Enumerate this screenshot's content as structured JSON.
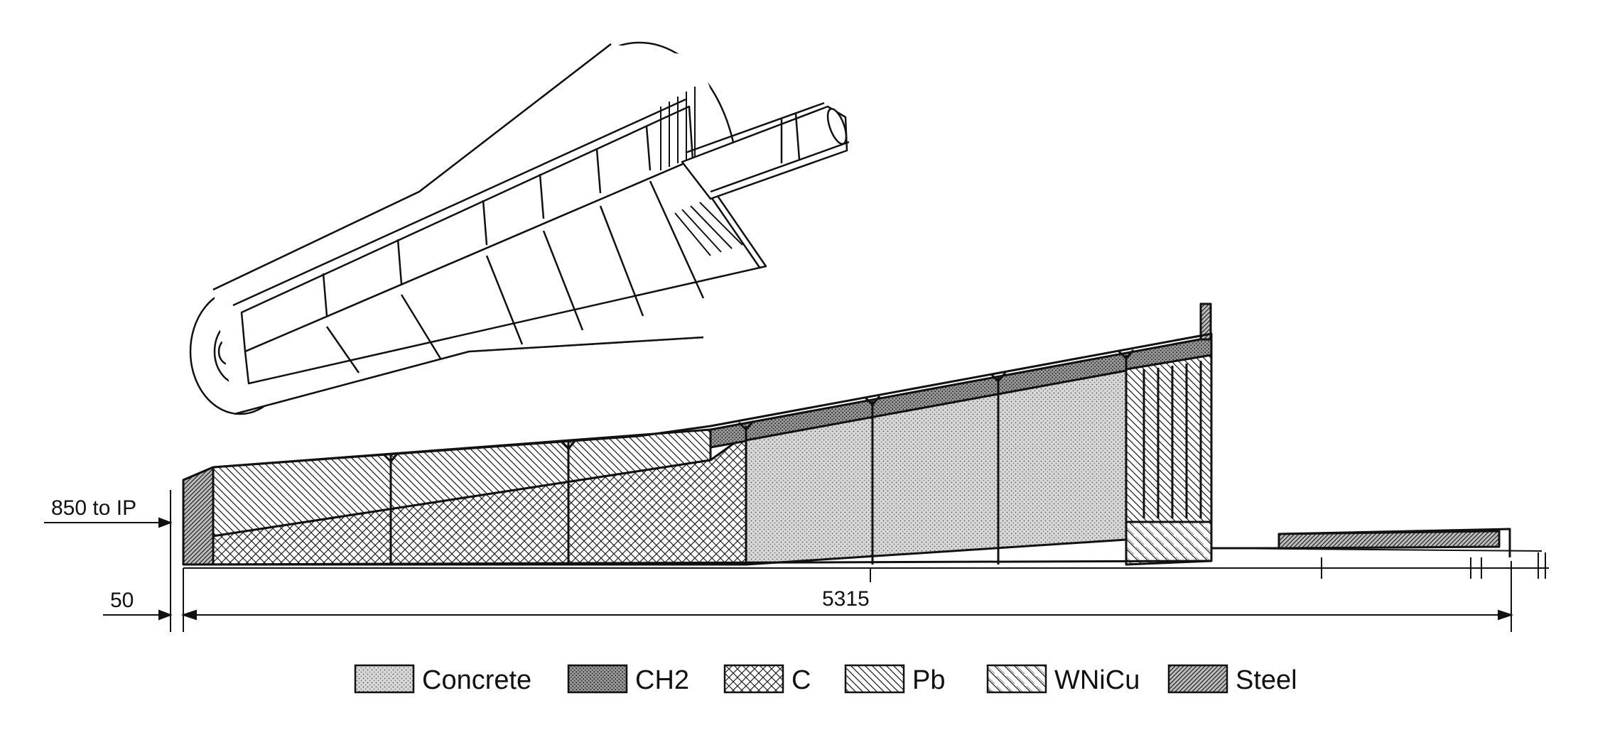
{
  "dimensions": {
    "offset_label": "850 to IP",
    "gap_label": "50",
    "length_label": "5315"
  },
  "legend": {
    "items": [
      {
        "label": "Concrete",
        "pattern": "pat-concrete"
      },
      {
        "label": "CH2",
        "pattern": "pat-ch2"
      },
      {
        "label": "C",
        "pattern": "pat-c"
      },
      {
        "label": "Pb",
        "pattern": "pat-pb"
      },
      {
        "label": "WNiCu",
        "pattern": "pat-wnicu"
      },
      {
        "label": "Steel",
        "pattern": "pat-steel"
      }
    ]
  },
  "colors": {
    "line": "#111111",
    "background": "#ffffff"
  }
}
